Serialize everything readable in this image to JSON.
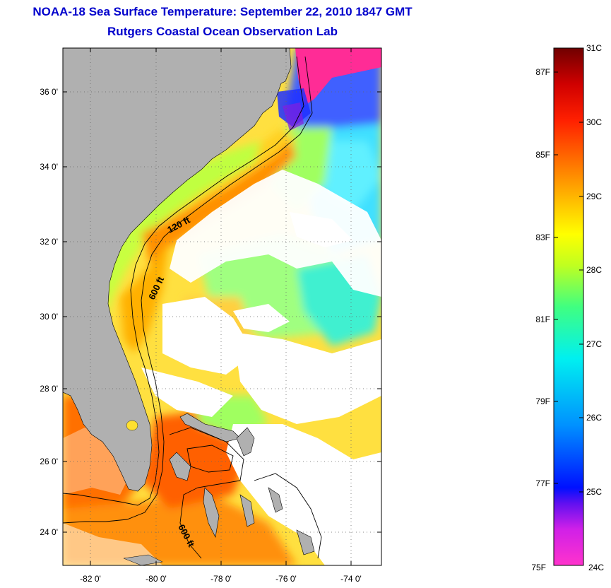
{
  "title": {
    "line1": "NOAA-18 Sea Surface Temperature:  September 22, 2010 1847 GMT",
    "line2": "Rutgers Coastal Ocean Observation Lab"
  },
  "map": {
    "region": "US Southeast Atlantic coast",
    "lat_ticks": [
      "36 0'",
      "34 0'",
      "32 0'",
      "30 0'",
      "28 0'",
      "26 0'",
      "24 0'"
    ],
    "lon_ticks": [
      "-82 0'",
      "-80 0'",
      "-78 0'",
      "-76 0'",
      "-74 0'"
    ],
    "contours": [
      "120 ft",
      "600 ft",
      "600 ft"
    ],
    "colors": {
      "land": "#b0b0b0",
      "cloud": "#ffffff"
    }
  },
  "colorbar": {
    "celsius": [
      "31C",
      "30C",
      "29C",
      "28C",
      "27C",
      "26C",
      "25C",
      "24C"
    ],
    "fahrenheit": [
      "87F",
      "85F",
      "83F",
      "81F",
      "79F",
      "77F",
      "75F"
    ],
    "gradient_colors": [
      "#ff33cc",
      "#8020e0",
      "#0010ff",
      "#0070ff",
      "#00d0ff",
      "#00ffb0",
      "#a0ff40",
      "#ffff00",
      "#ffb000",
      "#ff6000",
      "#ff1000",
      "#c00000",
      "#700000"
    ]
  }
}
